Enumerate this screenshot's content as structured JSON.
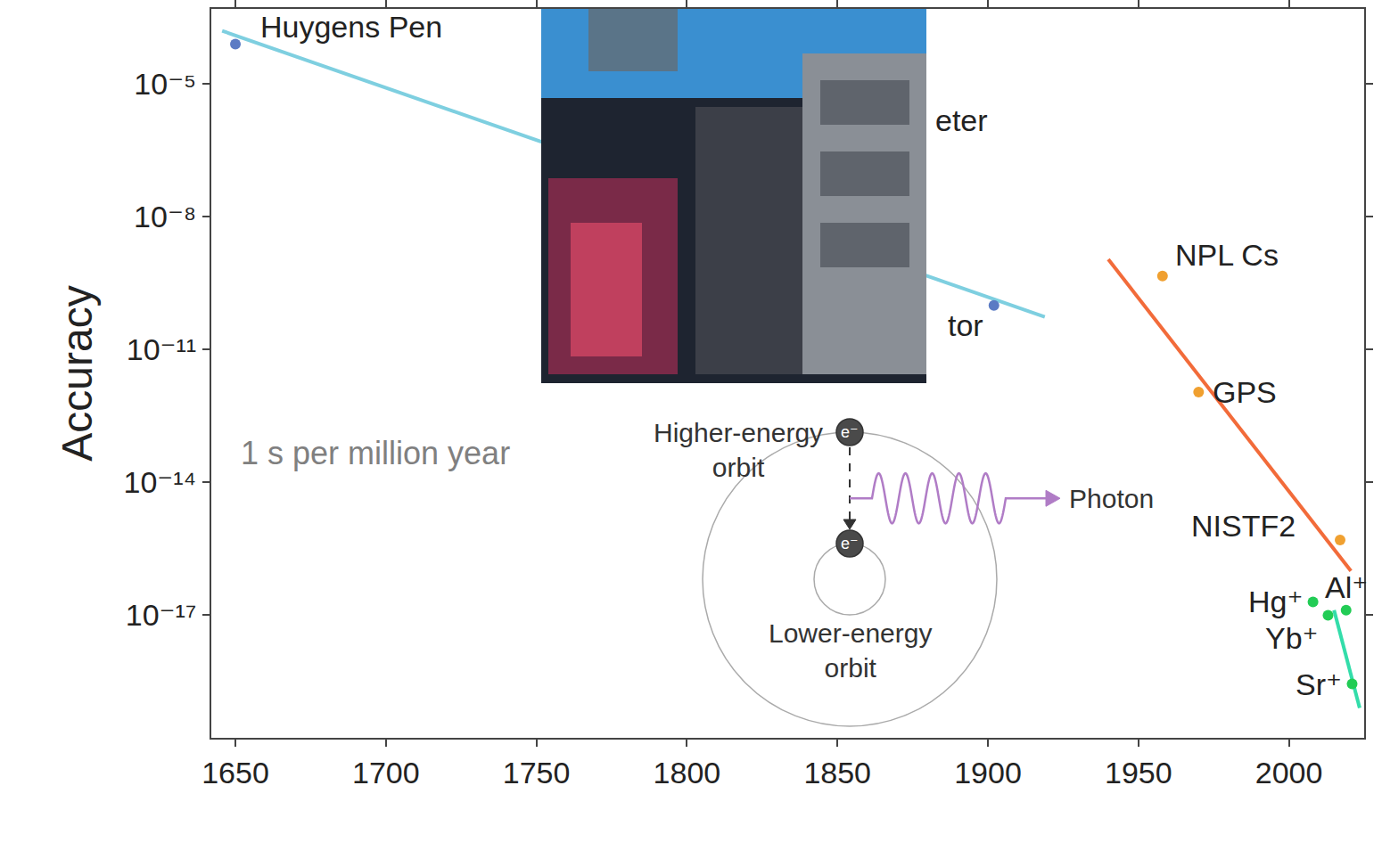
{
  "chart_data": {
    "type": "scatter",
    "y_label": "Accuracy",
    "log": "y",
    "grid": false,
    "xlim": [
      1642,
      2025
    ],
    "xticks": [
      1650,
      1700,
      1750,
      1800,
      1850,
      1900,
      1950,
      2000
    ],
    "ylim": [
      1.7e-20,
      0.0005
    ],
    "yticks": [
      {
        "value": 1e-05,
        "label": "10⁻⁵"
      },
      {
        "value": 1e-08,
        "label": "10⁻⁸"
      },
      {
        "value": 1e-11,
        "label": "10⁻¹¹"
      },
      {
        "value": 1e-14,
        "label": "10⁻¹⁴"
      },
      {
        "value": 1e-17,
        "label": "10⁻¹⁷"
      }
    ],
    "series": [
      {
        "type": "line",
        "color": "#7ecfe0",
        "line_style": "solid",
        "x": [
          1645.6,
          1918.9
        ],
        "values": [
          0.00016,
          5.5e-11
        ]
      },
      {
        "type": "scatter",
        "color": "#5b7bc4",
        "marker": "circle",
        "x": [
          1650,
          1902
        ],
        "values": [
          8e-05,
          1e-10
        ],
        "labels": [
          "Huygens Pen",
          "tor"
        ]
      },
      {
        "type": "line",
        "color": "#f26b3a",
        "line_style": "solid",
        "x": [
          1940,
          2020.6
        ],
        "values": [
          1.1e-09,
          1e-16
        ]
      },
      {
        "type": "scatter",
        "color": "#f0a030",
        "marker": "circle",
        "x": [
          1958,
          1970,
          2017
        ],
        "values": [
          4.6e-10,
          1.1e-12,
          5e-16
        ],
        "labels": [
          "NPL Cs",
          "GPS",
          "NISTF2"
        ]
      },
      {
        "type": "line",
        "color": "#33ddaa",
        "line_style": "solid",
        "x": [
          2015,
          2023.5
        ],
        "values": [
          1.3e-17,
          8e-20
        ]
      },
      {
        "type": "scatter",
        "color": "#22cc55",
        "marker": "circle",
        "x": [
          2008,
          2013,
          2019,
          2021
        ],
        "values": [
          2e-17,
          1e-17,
          1.3e-17,
          2.8e-19
        ],
        "labels": [
          "Hg⁺",
          "Yb⁺",
          "Al⁺",
          "Sr⁺"
        ]
      }
    ],
    "annotations": [
      "1 s per million year",
      "eter"
    ]
  },
  "diagram": {
    "upper_label": "Higher-energy orbit",
    "lower_label": "Lower-energy orbit",
    "photon_label": "Photon",
    "electron_label": "e⁻"
  }
}
